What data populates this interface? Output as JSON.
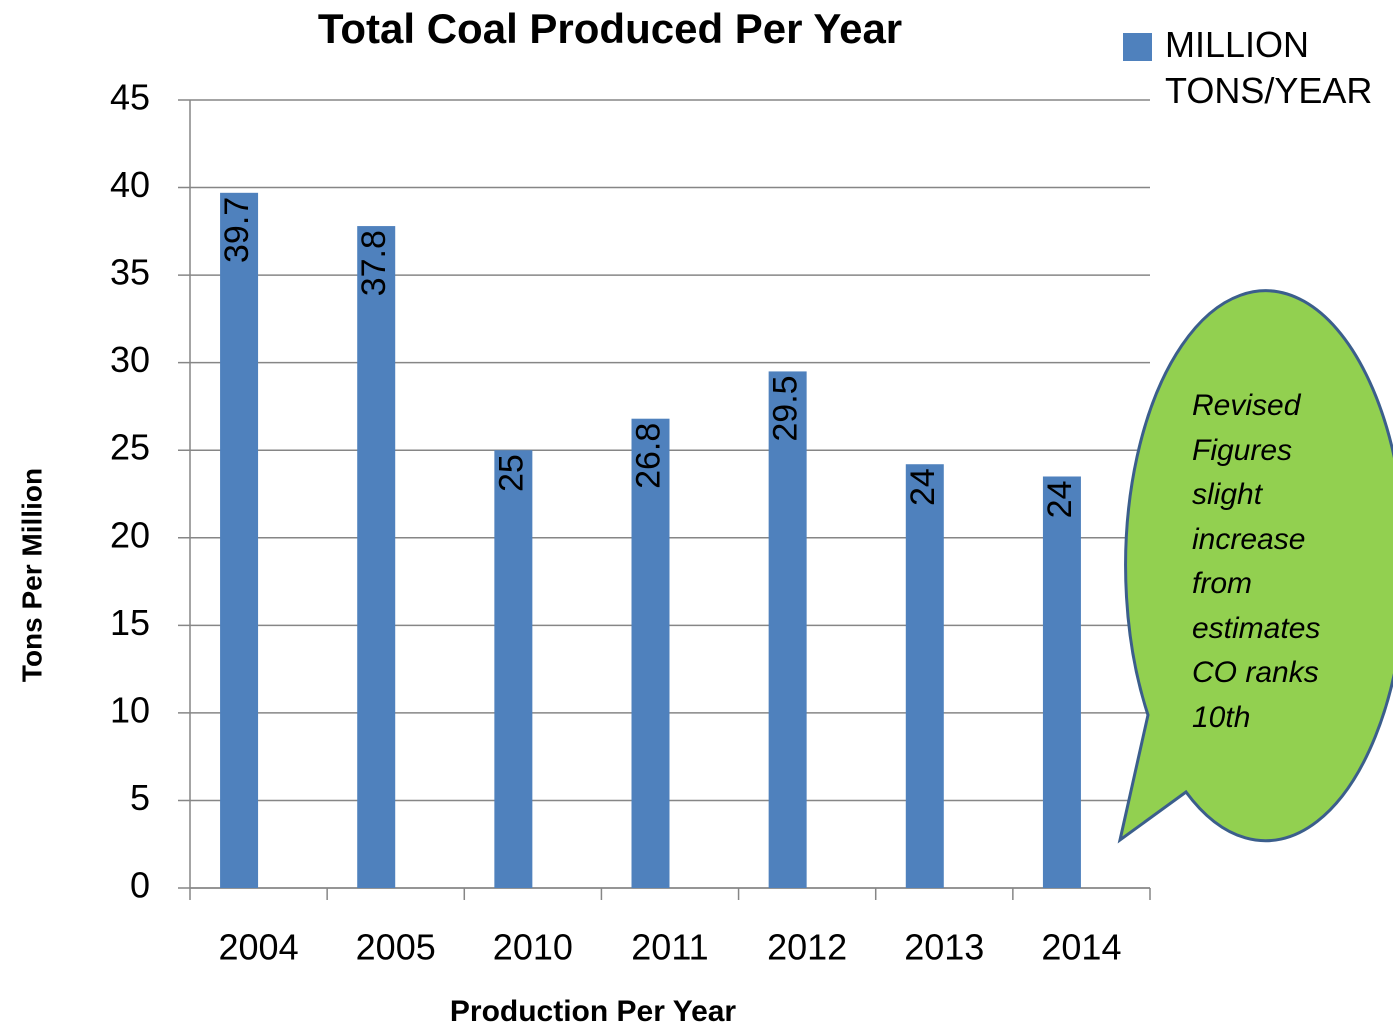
{
  "chart_data": {
    "type": "bar",
    "title": "Total Coal Produced Per Year",
    "x_label": "Production Per Year",
    "y_label": "Tons Per Million",
    "categories": [
      "2004",
      "2005",
      "2010",
      "2011",
      "2012",
      "2013",
      "2014"
    ],
    "series": [
      {
        "name": "MILLION TONS/YEAR",
        "color": "#4f81bd",
        "values": [
          39.7,
          37.8,
          25,
          26.8,
          29.5,
          24.2,
          23.5
        ],
        "value_labels": [
          "39.7",
          "37.8",
          "25",
          "26.8",
          "29.5",
          "24",
          "24"
        ]
      }
    ],
    "ylim": [
      0,
      45
    ],
    "yticks": [
      0,
      5,
      10,
      15,
      20,
      25,
      30,
      35,
      40,
      45
    ],
    "grid": true,
    "legend": "top-right",
    "annotation": "Revised Figures slight increase from estimates CO ranks 10th"
  }
}
